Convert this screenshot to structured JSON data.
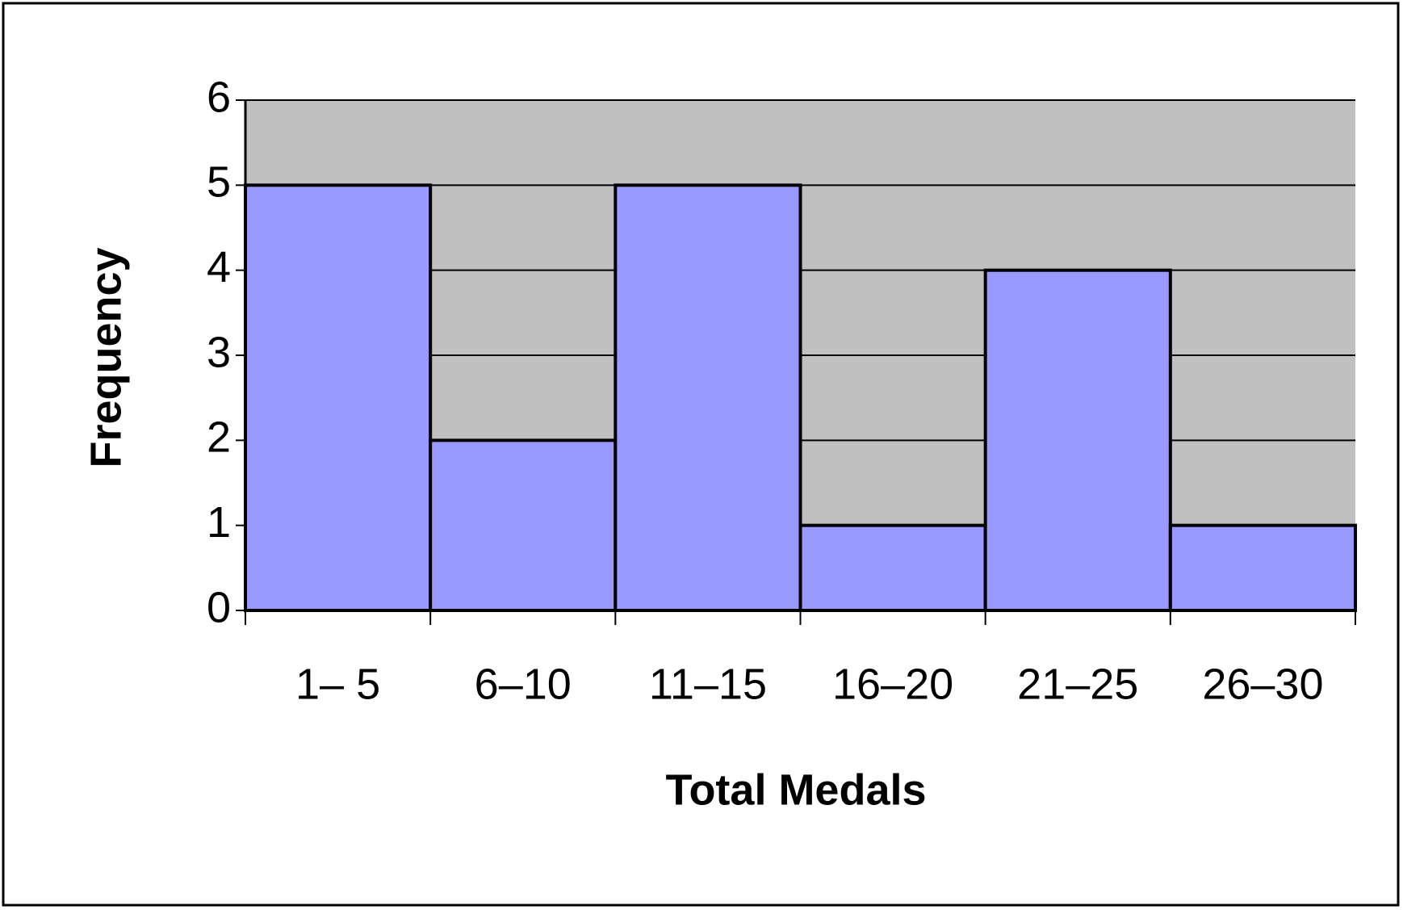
{
  "chart_data": {
    "type": "bar",
    "x_label": "Total Medals",
    "y_label": "Frequency",
    "categories": [
      "1– 5",
      "6–10",
      "11–15",
      "16–20",
      "21–25",
      "26–30"
    ],
    "values": [
      5,
      2,
      5,
      1,
      4,
      1
    ],
    "color": "#9999ff",
    "plot_background": "#c0c0c0",
    "ylim": [
      0,
      6
    ],
    "yticks": [
      0,
      1,
      2,
      3,
      4,
      5,
      6
    ],
    "grid": true
  }
}
